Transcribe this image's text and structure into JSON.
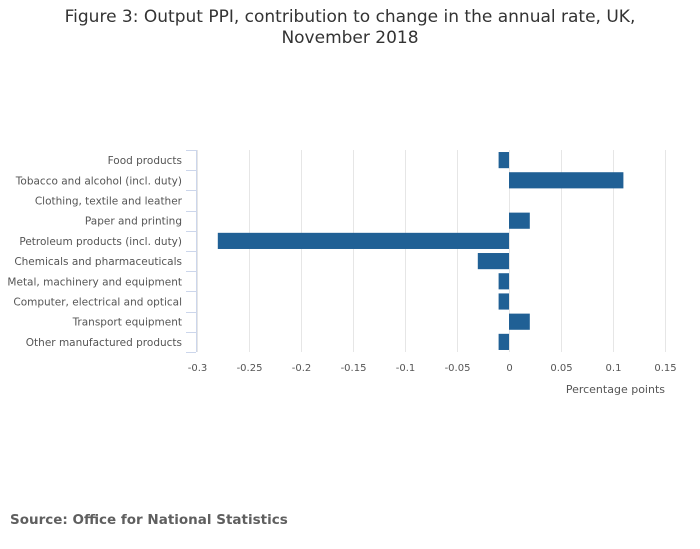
{
  "title_lines": [
    "Figure 3: Output PPI, contribution to change in the annual rate, UK,",
    "November 2018"
  ],
  "source": "Source: Office for National Statistics",
  "colors": {
    "bar": "#206095",
    "grid": "#e6e6e6",
    "axis": "#ccd6eb"
  },
  "chart_data": {
    "type": "bar",
    "orientation": "horizontal",
    "title": "Figure 3: Output PPI, contribution to change in the annual rate, UK, November 2018",
    "xlabel": "Percentage points",
    "ylabel": "",
    "categories": [
      "Food products",
      "Tobacco and alcohol (incl. duty)",
      "Clothing, textile and leather",
      "Paper and printing",
      "Petroleum products (incl. duty)",
      "Chemicals and pharmaceuticals",
      "Metal, machinery and equipment",
      "Computer, electrical and optical",
      "Transport equipment",
      "Other manufactured products"
    ],
    "values": [
      -0.01,
      0.11,
      0.0,
      0.02,
      -0.28,
      -0.03,
      -0.01,
      -0.01,
      0.02,
      -0.01
    ],
    "xlim": [
      -0.3,
      0.15
    ],
    "xticks": [
      -0.3,
      -0.25,
      -0.2,
      -0.15,
      -0.1,
      -0.05,
      0,
      0.05,
      0.1,
      0.15
    ],
    "xtick_labels": [
      "-0.3",
      "-0.25",
      "-0.2",
      "-0.15",
      "-0.1",
      "-0.05",
      "0",
      "0.05",
      "0.1",
      "0.15"
    ],
    "grid": true,
    "legend": "none"
  }
}
